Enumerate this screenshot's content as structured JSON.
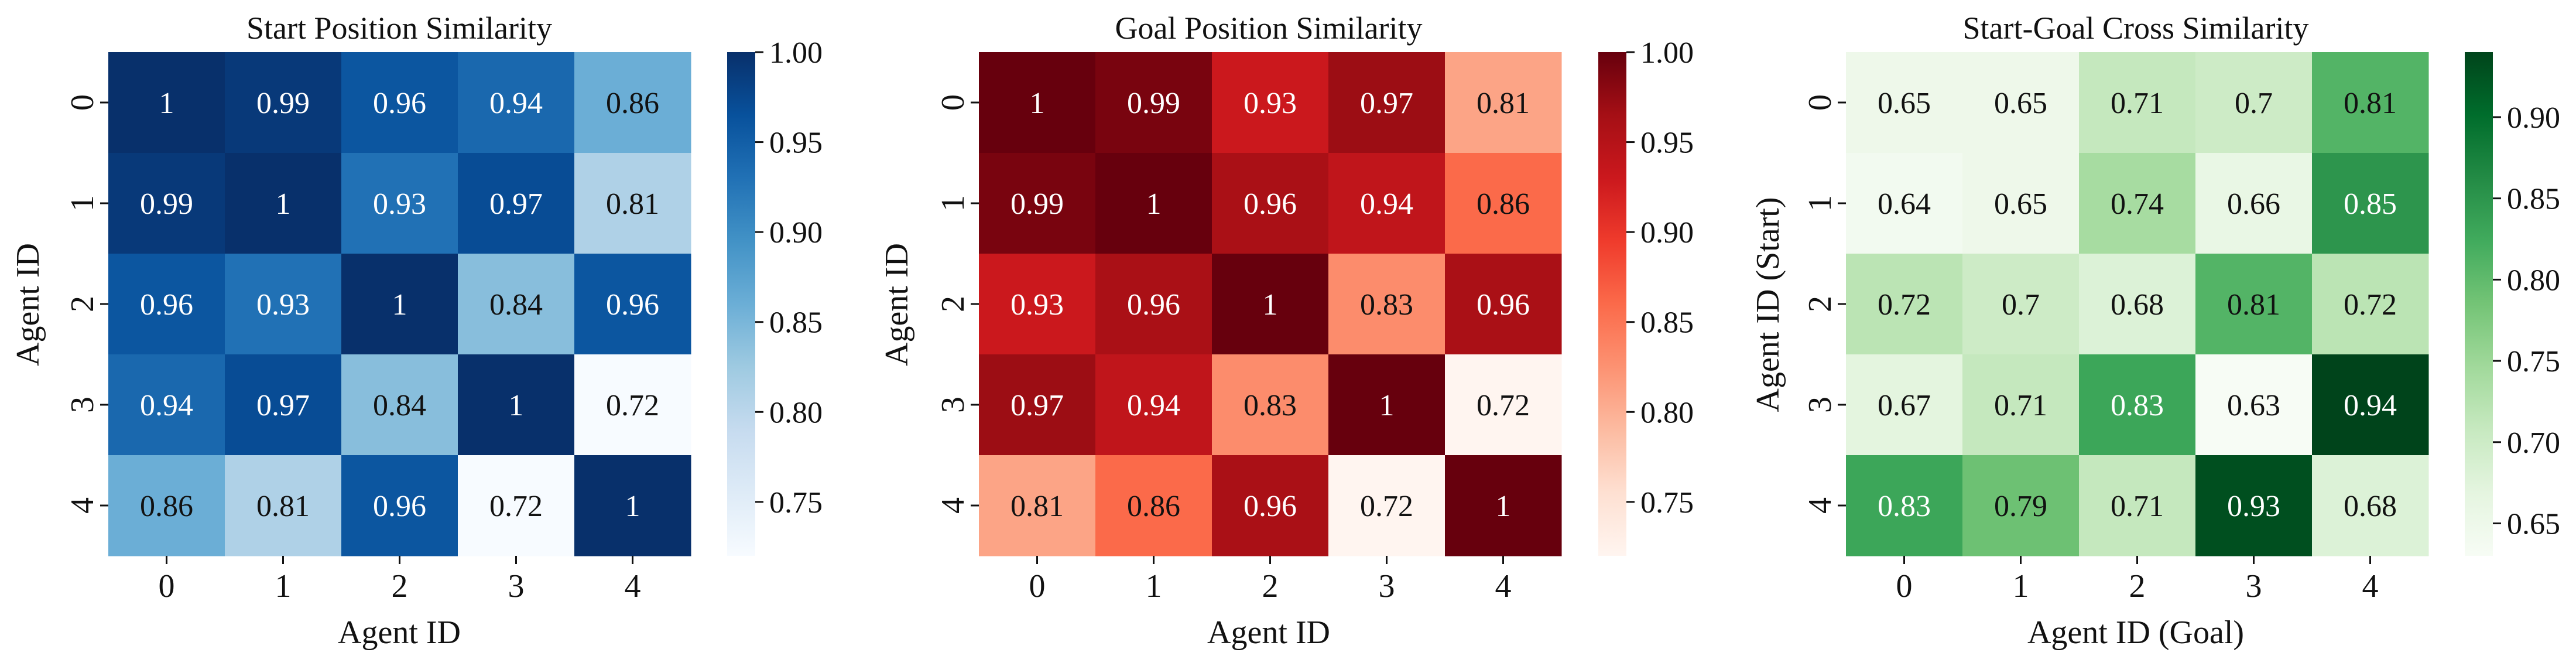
{
  "figure": {
    "background": "#ffffff"
  },
  "chart_data": [
    {
      "type": "heatmap",
      "title": "Start Position Similarity",
      "xlabel": "Agent ID",
      "ylabel": "Agent ID",
      "x_categories": [
        "0",
        "1",
        "2",
        "3",
        "4"
      ],
      "y_categories": [
        "0",
        "1",
        "2",
        "3",
        "4"
      ],
      "values": [
        [
          1.0,
          0.99,
          0.96,
          0.94,
          0.86
        ],
        [
          0.99,
          1.0,
          0.93,
          0.97,
          0.81
        ],
        [
          0.96,
          0.93,
          1.0,
          0.84,
          0.96
        ],
        [
          0.94,
          0.97,
          0.84,
          1.0,
          0.72
        ],
        [
          0.86,
          0.81,
          0.96,
          0.72,
          1.0
        ]
      ],
      "annotations": [
        [
          "1",
          "0.99",
          "0.96",
          "0.94",
          "0.86"
        ],
        [
          "0.99",
          "1",
          "0.93",
          "0.97",
          "0.81"
        ],
        [
          "0.96",
          "0.93",
          "1",
          "0.84",
          "0.96"
        ],
        [
          "0.94",
          "0.97",
          "0.84",
          "1",
          "0.72"
        ],
        [
          "0.86",
          "0.81",
          "0.96",
          "0.72",
          "1"
        ]
      ],
      "colormap": "Blues",
      "vmin": 0.72,
      "vmax": 1.0,
      "colorbar_ticks": [
        0.75,
        0.8,
        0.85,
        0.9,
        0.95,
        1.0
      ],
      "colorbar_tick_labels": [
        "0.75",
        "0.80",
        "0.85",
        "0.90",
        "0.95",
        "1.00"
      ],
      "colormap_stops": [
        "#f7fbff",
        "#deebf7",
        "#c6dbef",
        "#9ecae1",
        "#6baed6",
        "#4292c6",
        "#2171b5",
        "#08519c",
        "#08306b"
      ]
    },
    {
      "type": "heatmap",
      "title": "Goal Position Similarity",
      "xlabel": "Agent ID",
      "ylabel": "Agent ID",
      "x_categories": [
        "0",
        "1",
        "2",
        "3",
        "4"
      ],
      "y_categories": [
        "0",
        "1",
        "2",
        "3",
        "4"
      ],
      "values": [
        [
          1.0,
          0.99,
          0.93,
          0.97,
          0.81
        ],
        [
          0.99,
          1.0,
          0.96,
          0.94,
          0.86
        ],
        [
          0.93,
          0.96,
          1.0,
          0.83,
          0.96
        ],
        [
          0.97,
          0.94,
          0.83,
          1.0,
          0.72
        ],
        [
          0.81,
          0.86,
          0.96,
          0.72,
          1.0
        ]
      ],
      "annotations": [
        [
          "1",
          "0.99",
          "0.93",
          "0.97",
          "0.81"
        ],
        [
          "0.99",
          "1",
          "0.96",
          "0.94",
          "0.86"
        ],
        [
          "0.93",
          "0.96",
          "1",
          "0.83",
          "0.96"
        ],
        [
          "0.97",
          "0.94",
          "0.83",
          "1",
          "0.72"
        ],
        [
          "0.81",
          "0.86",
          "0.96",
          "0.72",
          "1"
        ]
      ],
      "colormap": "Reds",
      "vmin": 0.72,
      "vmax": 1.0,
      "colorbar_ticks": [
        0.75,
        0.8,
        0.85,
        0.9,
        0.95,
        1.0
      ],
      "colorbar_tick_labels": [
        "0.75",
        "0.80",
        "0.85",
        "0.90",
        "0.95",
        "1.00"
      ],
      "colormap_stops": [
        "#fff5f0",
        "#fee0d2",
        "#fcbba1",
        "#fc9272",
        "#fb6a4a",
        "#ef3b2c",
        "#cb181d",
        "#a50f15",
        "#67000d"
      ]
    },
    {
      "type": "heatmap",
      "title": "Start-Goal Cross Similarity",
      "xlabel": "Agent ID (Goal)",
      "ylabel": "Agent ID (Start)",
      "x_categories": [
        "0",
        "1",
        "2",
        "3",
        "4"
      ],
      "y_categories": [
        "0",
        "1",
        "2",
        "3",
        "4"
      ],
      "values": [
        [
          0.65,
          0.65,
          0.71,
          0.7,
          0.81
        ],
        [
          0.64,
          0.65,
          0.74,
          0.66,
          0.85
        ],
        [
          0.72,
          0.7,
          0.68,
          0.81,
          0.72
        ],
        [
          0.67,
          0.71,
          0.83,
          0.63,
          0.94
        ],
        [
          0.83,
          0.79,
          0.71,
          0.93,
          0.68
        ]
      ],
      "annotations": [
        [
          "0.65",
          "0.65",
          "0.71",
          "0.7",
          "0.81"
        ],
        [
          "0.64",
          "0.65",
          "0.74",
          "0.66",
          "0.85"
        ],
        [
          "0.72",
          "0.7",
          "0.68",
          "0.81",
          "0.72"
        ],
        [
          "0.67",
          "0.71",
          "0.83",
          "0.63",
          "0.94"
        ],
        [
          "0.83",
          "0.79",
          "0.71",
          "0.93",
          "0.68"
        ]
      ],
      "colormap": "Greens",
      "vmin": 0.63,
      "vmax": 0.94,
      "colorbar_ticks": [
        0.65,
        0.7,
        0.75,
        0.8,
        0.85,
        0.9
      ],
      "colorbar_tick_labels": [
        "0.65",
        "0.70",
        "0.75",
        "0.80",
        "0.85",
        "0.90"
      ],
      "colormap_stops": [
        "#f7fcf5",
        "#e5f5e0",
        "#c7e9c0",
        "#a1d99b",
        "#74c476",
        "#41ab5d",
        "#238b45",
        "#006d2c",
        "#00441b"
      ]
    }
  ]
}
